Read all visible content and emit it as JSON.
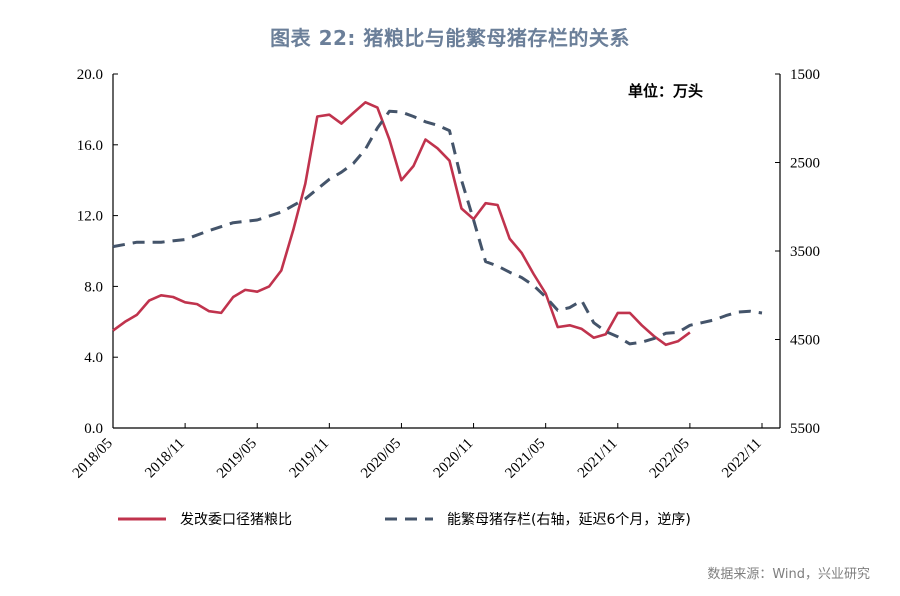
{
  "title": "图表 22: 猪粮比与能繁母猪存栏的关系",
  "source": "数据来源：Wind，兴业研究",
  "chart_data": {
    "type": "line",
    "unit_label": "单位：万头",
    "x_tick_labels": [
      "2018/05",
      "2018/11",
      "2019/05",
      "2019/11",
      "2020/05",
      "2020/11",
      "2021/05",
      "2021/11",
      "2022/05",
      "2022/11"
    ],
    "left_axis": {
      "ylim": [
        0,
        20
      ],
      "ticks": [
        "0.0",
        "4.0",
        "8.0",
        "12.0",
        "16.0",
        "20.0"
      ]
    },
    "right_axis": {
      "ylim": [
        1500,
        5500
      ],
      "reversed": true,
      "ticks": [
        "1500",
        "2500",
        "3500",
        "4500",
        "5500"
      ]
    },
    "series": [
      {
        "name": "发改委口径猪粮比",
        "color": "#c0334d",
        "axis": "left",
        "x": [
          "2018/05",
          "2018/06",
          "2018/07",
          "2018/08",
          "2018/09",
          "2018/10",
          "2018/11",
          "2018/12",
          "2019/01",
          "2019/02",
          "2019/03",
          "2019/04",
          "2019/05",
          "2019/06",
          "2019/07",
          "2019/08",
          "2019/09",
          "2019/10",
          "2019/11",
          "2019/12",
          "2020/01",
          "2020/02",
          "2020/03",
          "2020/04",
          "2020/05",
          "2020/06",
          "2020/07",
          "2020/08",
          "2020/09",
          "2020/10",
          "2020/11",
          "2020/12",
          "2021/01",
          "2021/02",
          "2021/03",
          "2021/04",
          "2021/05",
          "2021/06",
          "2021/07",
          "2021/08",
          "2021/09",
          "2021/10",
          "2021/11",
          "2021/12",
          "2022/01",
          "2022/02",
          "2022/03",
          "2022/04",
          "2022/05"
        ],
        "values": [
          5.5,
          6.0,
          6.4,
          7.2,
          7.5,
          7.4,
          7.1,
          7.0,
          6.6,
          6.5,
          7.4,
          7.8,
          7.7,
          8.0,
          8.9,
          11.2,
          13.8,
          17.6,
          17.7,
          17.2,
          17.8,
          18.4,
          18.1,
          16.3,
          14.0,
          14.8,
          16.3,
          15.8,
          15.1,
          12.4,
          11.8,
          12.7,
          12.6,
          10.7,
          9.9,
          8.7,
          7.6,
          5.7,
          5.8,
          5.6,
          5.1,
          5.3,
          6.5,
          6.5,
          5.8,
          5.2,
          4.7,
          4.9,
          5.4
        ]
      },
      {
        "name": "能繁母猪存栏(右轴，延迟6个月，逆序)",
        "color": "#44546a",
        "axis": "right",
        "dashed": true,
        "x": [
          "2018/05",
          "2018/07",
          "2018/09",
          "2018/11",
          "2019/01",
          "2019/03",
          "2019/05",
          "2019/07",
          "2019/09",
          "2019/11",
          "2019/12",
          "2020/01",
          "2020/02",
          "2020/03",
          "2020/04",
          "2020/05",
          "2020/06",
          "2020/07",
          "2020/08",
          "2020/09",
          "2020/10",
          "2020/11",
          "2020/12",
          "2021/01",
          "2021/02",
          "2021/03",
          "2021/04",
          "2021/05",
          "2021/06",
          "2021/07",
          "2021/08",
          "2021/09",
          "2021/10",
          "2021/11",
          "2021/12",
          "2022/01",
          "2022/02",
          "2022/03",
          "2022/04",
          "2022/05",
          "2022/06",
          "2022/07",
          "2022/08",
          "2022/09",
          "2022/10",
          "2022/11"
        ],
        "values": [
          3450,
          3400,
          3400,
          3370,
          3270,
          3180,
          3150,
          3060,
          2910,
          2690,
          2610,
          2510,
          2350,
          2110,
          1920,
          1930,
          1980,
          2040,
          2080,
          2140,
          2700,
          3150,
          3620,
          3670,
          3740,
          3800,
          3890,
          4020,
          4170,
          4140,
          4060,
          4310,
          4410,
          4470,
          4550,
          4530,
          4490,
          4430,
          4420,
          4340,
          4310,
          4280,
          4230,
          4190,
          4180,
          4200
        ]
      }
    ]
  }
}
